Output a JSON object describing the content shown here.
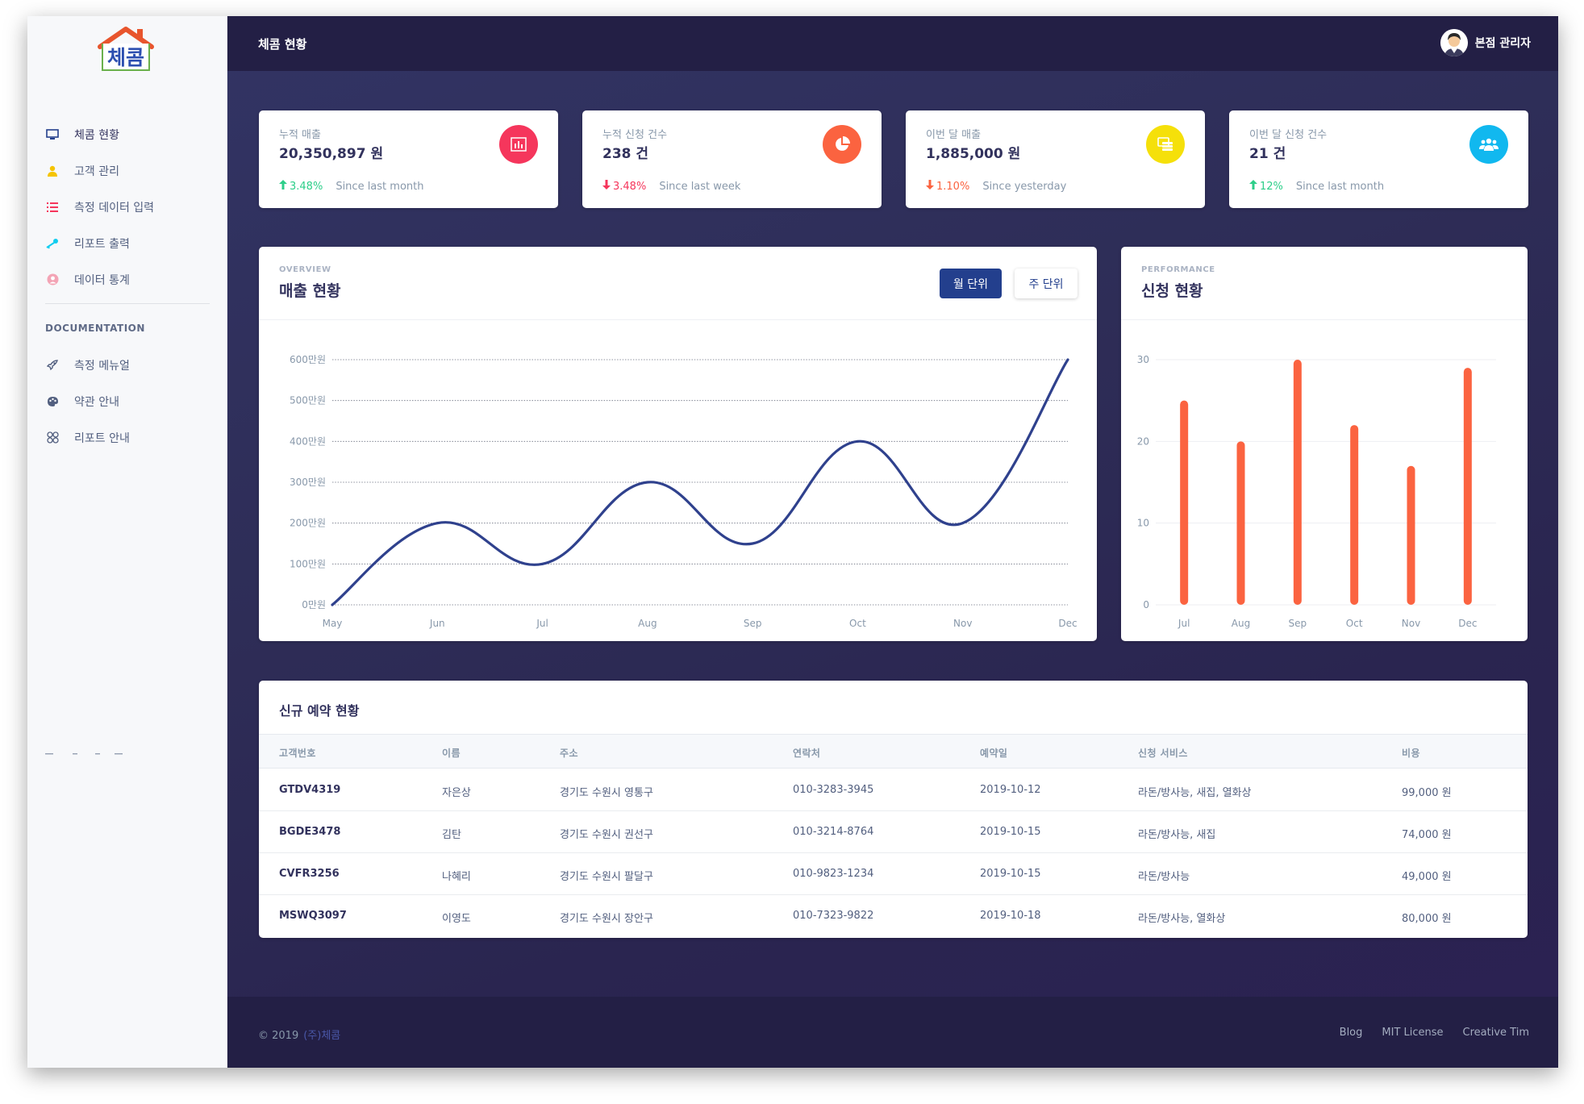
{
  "app": {
    "logo_text": "체콤",
    "page_title": "체콤 현황",
    "user_name": "본점 관리자"
  },
  "sidebar": {
    "items": [
      {
        "label": "체콤 현황",
        "icon": "monitor-icon",
        "color": "#233f8d"
      },
      {
        "label": "고객 관리",
        "icon": "user-icon",
        "color": "#f5c400"
      },
      {
        "label": "측정 데이터 입력",
        "icon": "list-icon",
        "color": "#f5365c"
      },
      {
        "label": "리포트 출력",
        "icon": "key-icon",
        "color": "#11cdef"
      },
      {
        "label": "데이터 통계",
        "icon": "user-circle-icon",
        "color": "#f3a4b5"
      }
    ],
    "section_title": "DOCUMENTATION",
    "doc_items": [
      {
        "label": "측정 메뉴얼",
        "icon": "rocket-icon"
      },
      {
        "label": "약관 안내",
        "icon": "palette-icon"
      },
      {
        "label": "리포트 안내",
        "icon": "ui-shapes-icon"
      }
    ]
  },
  "stats": [
    {
      "label": "누적 매출",
      "value": "20,350,897 원",
      "pct": "3.48%",
      "trend": "up",
      "since": "Since last month",
      "icon": "bar-chart-icon",
      "icon_color": "#f5365c"
    },
    {
      "label": "누적 신청 건수",
      "value": "238 건",
      "pct": "3.48%",
      "trend": "down",
      "since": "Since last week",
      "icon": "pie-chart-icon",
      "icon_color": "#fb6340"
    },
    {
      "label": "이번 달 매출",
      "value": "1,885,000 원",
      "pct": "1.10%",
      "trend": "down",
      "since": "Since yesterday",
      "icon": "coins-icon",
      "icon_color": "#f5e00a"
    },
    {
      "label": "이번 달 신청 건수",
      "value": "21 건",
      "pct": "12%",
      "trend": "up",
      "since": "Since last month",
      "icon": "users-icon",
      "icon_color": "#11b8ef"
    }
  ],
  "colors": {
    "up": "#2dce89",
    "down_red": "#f5365c",
    "down_orange": "#fb6340",
    "line": "#2f418d",
    "bar": "#fb6340"
  },
  "sales_card": {
    "overline": "OVERVIEW",
    "title": "매출 현황",
    "btn_month": "월 단위",
    "btn_week": "주 단위"
  },
  "perf_card": {
    "overline": "PERFORMANCE",
    "title": "신청 현황"
  },
  "chart_data": [
    {
      "type": "line",
      "categories": [
        "May",
        "Jun",
        "Jul",
        "Aug",
        "Sep",
        "Oct",
        "Nov",
        "Dec"
      ],
      "values": [
        0,
        200,
        100,
        300,
        150,
        400,
        200,
        600
      ],
      "y_ticks": [
        "0만원",
        "100만원",
        "200만원",
        "300만원",
        "400만원",
        "500만원",
        "600만원"
      ],
      "ylim": [
        0,
        600
      ],
      "grid": true
    },
    {
      "type": "bar",
      "categories": [
        "Jul",
        "Aug",
        "Sep",
        "Oct",
        "Nov",
        "Dec"
      ],
      "values": [
        25,
        20,
        30,
        22,
        17,
        29
      ],
      "y_ticks": [
        "0",
        "10",
        "20",
        "30"
      ],
      "ylim": [
        0,
        30
      ],
      "grid": true
    }
  ],
  "table": {
    "title": "신규 예약 현황",
    "headers": [
      "고객번호",
      "이름",
      "주소",
      "연락처",
      "예약일",
      "신청 서비스",
      "비용"
    ],
    "rows": [
      [
        "GTDV4319",
        "자은상",
        "경기도 수원시 영통구",
        "010-3283-3945",
        "2019-10-12",
        "라돈/방사능, 새집, 열화상",
        "99,000 원"
      ],
      [
        "BGDE3478",
        "김탄",
        "경기도 수원시 권선구",
        "010-3214-8764",
        "2019-10-15",
        "라돈/방사능, 새집",
        "74,000 원"
      ],
      [
        "CVFR3256",
        "나혜리",
        "경기도 수원시 팔달구",
        "010-9823-1234",
        "2019-10-15",
        "라돈/방사능",
        "49,000 원"
      ],
      [
        "MSWQ3097",
        "이영도",
        "경기도 수원시 장안구",
        "010-7323-9822",
        "2019-10-18",
        "라돈/방사능, 열화상",
        "80,000 원"
      ]
    ]
  },
  "footer": {
    "copyright": "© 2019",
    "brand": "(주)체콤",
    "links": [
      "Blog",
      "MIT License",
      "Creative Tim"
    ]
  }
}
